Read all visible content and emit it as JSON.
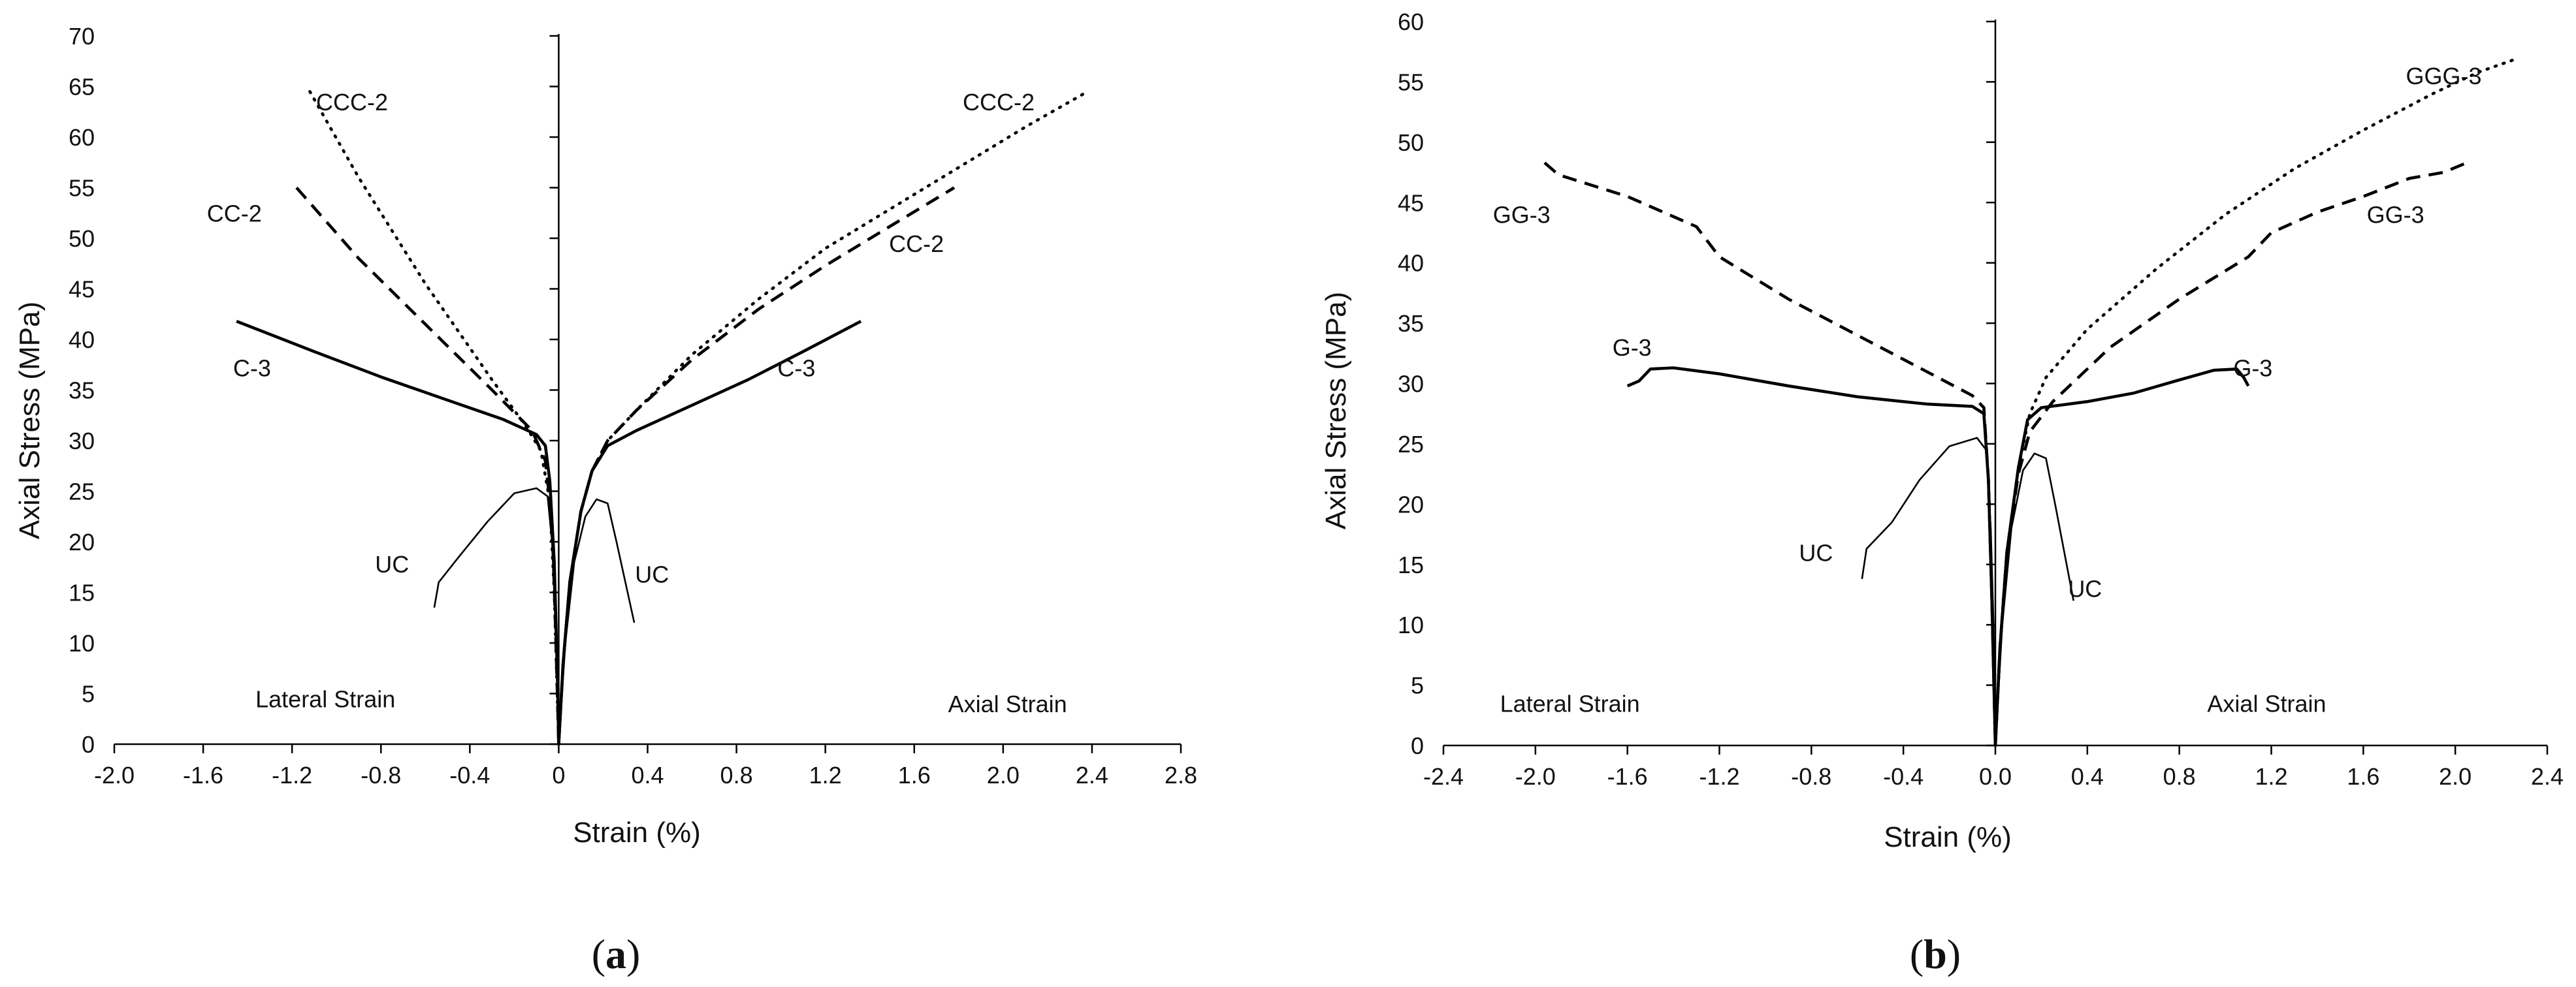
{
  "chart_data": [
    {
      "type": "line",
      "panel_label": "(a)",
      "panel_label_parts": {
        "open": "(",
        "letter": "a",
        "close": ")"
      },
      "xlabel": "Strain (%)",
      "ylabel": "Axial Stress (MPa)",
      "xlim": [
        -2.0,
        2.8
      ],
      "ylim": [
        0,
        70
      ],
      "xticks": [
        -2.0,
        -1.6,
        -1.2,
        -0.8,
        -0.4,
        0,
        0.4,
        0.8,
        1.2,
        1.6,
        2.0,
        2.4,
        2.8
      ],
      "xtick_labels": [
        "-2.0",
        "-1.6",
        "-1.2",
        "-0.8",
        "-0.4",
        "0",
        "0.4",
        "0.8",
        "1.2",
        "1.6",
        "2.0",
        "2.4",
        "2.8"
      ],
      "yticks": [
        0,
        5,
        10,
        15,
        20,
        25,
        30,
        35,
        40,
        45,
        50,
        55,
        60,
        65,
        70
      ],
      "ytick_labels": [
        "0",
        "5",
        "10",
        "15",
        "20",
        "25",
        "30",
        "35",
        "40",
        "45",
        "50",
        "55",
        "60",
        "65",
        "70"
      ],
      "region_labels": [
        {
          "text": "Lateral Strain",
          "x": -1.05,
          "y": 4.5
        },
        {
          "text": "Axial Strain",
          "x": 2.02,
          "y": 4.0
        }
      ],
      "series": [
        {
          "name": "CCC-2",
          "style": "dotted",
          "weight": "thick",
          "points": [
            [
              -1.12,
              64.5
            ],
            [
              -0.9,
              56
            ],
            [
              -0.6,
              45.5
            ],
            [
              -0.3,
              36
            ],
            [
              -0.15,
              31.5
            ],
            [
              -0.08,
              29
            ],
            [
              -0.04,
              24
            ],
            [
              -0.02,
              15
            ],
            [
              0,
              0
            ]
          ]
        },
        {
          "name": "CC-2",
          "style": "dashed",
          "weight": "thick",
          "points": [
            [
              -1.18,
              55
            ],
            [
              -0.9,
              48
            ],
            [
              -0.6,
              41.5
            ],
            [
              -0.3,
              35
            ],
            [
              -0.12,
              31
            ],
            [
              -0.06,
              28
            ],
            [
              -0.03,
              22
            ],
            [
              -0.015,
              12
            ],
            [
              0,
              0
            ]
          ]
        },
        {
          "name": "C-3",
          "style": "solid",
          "weight": "thick",
          "points": [
            [
              -1.45,
              41.8
            ],
            [
              -1.1,
              38.8
            ],
            [
              -0.8,
              36.3
            ],
            [
              -0.5,
              34
            ],
            [
              -0.25,
              32.1
            ],
            [
              -0.1,
              30.6
            ],
            [
              -0.06,
              29.5
            ],
            [
              -0.04,
              26
            ],
            [
              -0.02,
              18
            ],
            [
              -0.005,
              6
            ],
            [
              0,
              0
            ]
          ]
        },
        {
          "name": "UC",
          "style": "solid",
          "weight": "thin",
          "points": [
            [
              -0.56,
              13.5
            ],
            [
              -0.54,
              16
            ],
            [
              -0.45,
              18.5
            ],
            [
              -0.32,
              22
            ],
            [
              -0.2,
              24.8
            ],
            [
              -0.1,
              25.3
            ],
            [
              -0.05,
              24.5
            ],
            [
              -0.03,
              20
            ],
            [
              -0.015,
              12
            ],
            [
              0,
              0
            ]
          ]
        },
        {
          "name": "CCC-2",
          "style": "dotted",
          "weight": "thick",
          "points": [
            [
              0,
              0
            ],
            [
              0.02,
              8
            ],
            [
              0.05,
              16
            ],
            [
              0.1,
              23
            ],
            [
              0.15,
              27
            ],
            [
              0.22,
              30
            ],
            [
              0.35,
              33
            ],
            [
              0.6,
              38.5
            ],
            [
              0.9,
              44
            ],
            [
              1.2,
              49
            ],
            [
              1.5,
              53
            ],
            [
              1.8,
              57
            ],
            [
              2.1,
              61
            ],
            [
              2.38,
              64.5
            ]
          ]
        },
        {
          "name": "CC-2",
          "style": "dashed",
          "weight": "thick",
          "points": [
            [
              0,
              0
            ],
            [
              0.02,
              8
            ],
            [
              0.05,
              16
            ],
            [
              0.1,
              23
            ],
            [
              0.15,
              27
            ],
            [
              0.22,
              30
            ],
            [
              0.35,
              33
            ],
            [
              0.6,
              38
            ],
            [
              0.9,
              43
            ],
            [
              1.2,
              47.3
            ],
            [
              1.5,
              51.3
            ],
            [
              1.78,
              55
            ]
          ]
        },
        {
          "name": "C-3",
          "style": "solid",
          "weight": "thick",
          "points": [
            [
              0,
              0
            ],
            [
              0.02,
              8
            ],
            [
              0.05,
              16
            ],
            [
              0.1,
              23
            ],
            [
              0.15,
              27
            ],
            [
              0.22,
              29.5
            ],
            [
              0.35,
              31
            ],
            [
              0.6,
              33.5
            ],
            [
              0.85,
              36
            ],
            [
              1.1,
              38.8
            ],
            [
              1.36,
              41.8
            ]
          ]
        },
        {
          "name": "UC",
          "style": "solid",
          "weight": "thin",
          "points": [
            [
              0,
              0
            ],
            [
              0.03,
              10
            ],
            [
              0.07,
              18
            ],
            [
              0.12,
              22.5
            ],
            [
              0.17,
              24.2
            ],
            [
              0.22,
              23.8
            ],
            [
              0.26,
              20
            ],
            [
              0.3,
              16
            ],
            [
              0.34,
              12
            ]
          ]
        }
      ],
      "annotations": [
        {
          "text": "CCC-2",
          "x": -0.93,
          "y": 63.5
        },
        {
          "text": "CC-2",
          "x": -1.46,
          "y": 52.5
        },
        {
          "text": "C-3",
          "x": -1.38,
          "y": 37.2
        },
        {
          "text": "UC",
          "x": -0.75,
          "y": 17.8
        },
        {
          "text": "CCC-2",
          "x": 1.98,
          "y": 63.5
        },
        {
          "text": "CC-2",
          "x": 1.61,
          "y": 49.5
        },
        {
          "text": "C-3",
          "x": 1.07,
          "y": 37.2
        },
        {
          "text": "UC",
          "x": 0.42,
          "y": 16.8
        }
      ]
    },
    {
      "type": "line",
      "panel_label": "(b)",
      "panel_label_parts": {
        "open": "(",
        "letter": "b",
        "close": ")"
      },
      "xlabel": "Strain (%)",
      "ylabel": "Axial Stress  (MPa)",
      "xlim": [
        -2.4,
        2.4
      ],
      "ylim": [
        0,
        60
      ],
      "xticks": [
        -2.4,
        -2.0,
        -1.6,
        -1.2,
        -0.8,
        -0.4,
        0,
        0.4,
        0.8,
        1.2,
        1.6,
        2.0,
        2.4
      ],
      "xtick_labels": [
        "-2.4",
        "-2.0",
        "-1.6",
        "-1.2",
        "-0.8",
        "-0.4",
        "0.0",
        "0.4",
        "0.8",
        "1.2",
        "1.6",
        "2.0",
        "2.4"
      ],
      "yticks": [
        0,
        5,
        10,
        15,
        20,
        25,
        30,
        35,
        40,
        45,
        50,
        55,
        60
      ],
      "ytick_labels": [
        "0",
        "5",
        "10",
        "15",
        "20",
        "25",
        "30",
        "35",
        "40",
        "45",
        "50",
        "55",
        "60"
      ],
      "region_labels": [
        {
          "text": "Lateral Strain",
          "x": -1.85,
          "y": 3.5
        },
        {
          "text": "Axial Strain",
          "x": 1.18,
          "y": 3.5
        }
      ],
      "series": [
        {
          "name": "GG-3",
          "style": "dashed",
          "weight": "thick",
          "points": [
            [
              -1.96,
              48.3
            ],
            [
              -1.9,
              47.3
            ],
            [
              -1.6,
              45.5
            ],
            [
              -1.3,
              43
            ],
            [
              -1.2,
              40.5
            ],
            [
              -0.9,
              37
            ],
            [
              -0.6,
              34
            ],
            [
              -0.3,
              31
            ],
            [
              -0.1,
              29
            ],
            [
              -0.05,
              28
            ],
            [
              -0.03,
              22
            ],
            [
              -0.015,
              12
            ],
            [
              0,
              0
            ]
          ]
        },
        {
          "name": "G-3",
          "style": "solid",
          "weight": "thick",
          "points": [
            [
              -1.6,
              29.8
            ],
            [
              -1.55,
              30.2
            ],
            [
              -1.5,
              31.2
            ],
            [
              -1.4,
              31.3
            ],
            [
              -1.2,
              30.8
            ],
            [
              -0.9,
              29.8
            ],
            [
              -0.6,
              28.9
            ],
            [
              -0.3,
              28.3
            ],
            [
              -0.1,
              28.1
            ],
            [
              -0.05,
              27.5
            ],
            [
              -0.03,
              22
            ],
            [
              -0.015,
              12
            ],
            [
              0,
              0
            ]
          ]
        },
        {
          "name": "UC",
          "style": "solid",
          "weight": "thin",
          "points": [
            [
              -0.58,
              13.8
            ],
            [
              -0.56,
              16.3
            ],
            [
              -0.45,
              18.5
            ],
            [
              -0.33,
              22
            ],
            [
              -0.2,
              24.8
            ],
            [
              -0.08,
              25.5
            ],
            [
              -0.04,
              24.5
            ],
            [
              -0.02,
              18
            ],
            [
              -0.008,
              10
            ],
            [
              0,
              0
            ]
          ]
        },
        {
          "name": "GGG-3",
          "style": "dotted",
          "weight": "thick",
          "points": [
            [
              0,
              0
            ],
            [
              0.02,
              8
            ],
            [
              0.05,
              16
            ],
            [
              0.1,
              23
            ],
            [
              0.15,
              27.5
            ],
            [
              0.22,
              30.5
            ],
            [
              0.4,
              34.5
            ],
            [
              0.7,
              39.5
            ],
            [
              1.0,
              44
            ],
            [
              1.3,
              47.8
            ],
            [
              1.6,
              51
            ],
            [
              1.9,
              54
            ],
            [
              2.1,
              55.8
            ],
            [
              2.25,
              56.8
            ]
          ]
        },
        {
          "name": "GG-3",
          "style": "dashed",
          "weight": "thick",
          "points": [
            [
              0,
              0
            ],
            [
              0.02,
              8
            ],
            [
              0.05,
              16
            ],
            [
              0.1,
              22.5
            ],
            [
              0.15,
              26
            ],
            [
              0.25,
              28.5
            ],
            [
              0.5,
              33
            ],
            [
              0.8,
              37
            ],
            [
              1.1,
              40.5
            ],
            [
              1.2,
              42.5
            ],
            [
              1.4,
              44.2
            ],
            [
              1.6,
              45.5
            ],
            [
              1.8,
              47
            ],
            [
              1.95,
              47.5
            ],
            [
              2.05,
              48.3
            ]
          ]
        },
        {
          "name": "G-3",
          "style": "solid",
          "weight": "thick",
          "points": [
            [
              0,
              0
            ],
            [
              0.02,
              8
            ],
            [
              0.05,
              16
            ],
            [
              0.1,
              23
            ],
            [
              0.14,
              27
            ],
            [
              0.2,
              28
            ],
            [
              0.4,
              28.5
            ],
            [
              0.6,
              29.2
            ],
            [
              0.8,
              30.3
            ],
            [
              0.95,
              31.1
            ],
            [
              1.05,
              31.2
            ],
            [
              1.08,
              30.5
            ],
            [
              1.1,
              29.8
            ]
          ]
        },
        {
          "name": "UC",
          "style": "solid",
          "weight": "thin",
          "points": [
            [
              0,
              0
            ],
            [
              0.03,
              10
            ],
            [
              0.07,
              18
            ],
            [
              0.12,
              22.8
            ],
            [
              0.17,
              24.2
            ],
            [
              0.22,
              23.8
            ],
            [
              0.26,
              20
            ],
            [
              0.3,
              16
            ],
            [
              0.34,
              12
            ]
          ]
        }
      ],
      "annotations": [
        {
          "text": "GGG-3",
          "x": 1.95,
          "y": 55.5
        },
        {
          "text": "GG-3",
          "x": -2.06,
          "y": 44.0
        },
        {
          "text": "GG-3",
          "x": 1.74,
          "y": 44.0
        },
        {
          "text": "G-3",
          "x": -1.58,
          "y": 33.0
        },
        {
          "text": "G-3",
          "x": 1.12,
          "y": 31.3
        },
        {
          "text": "UC",
          "x": -0.78,
          "y": 16.0
        },
        {
          "text": "UC",
          "x": 0.39,
          "y": 13.0
        }
      ]
    }
  ]
}
